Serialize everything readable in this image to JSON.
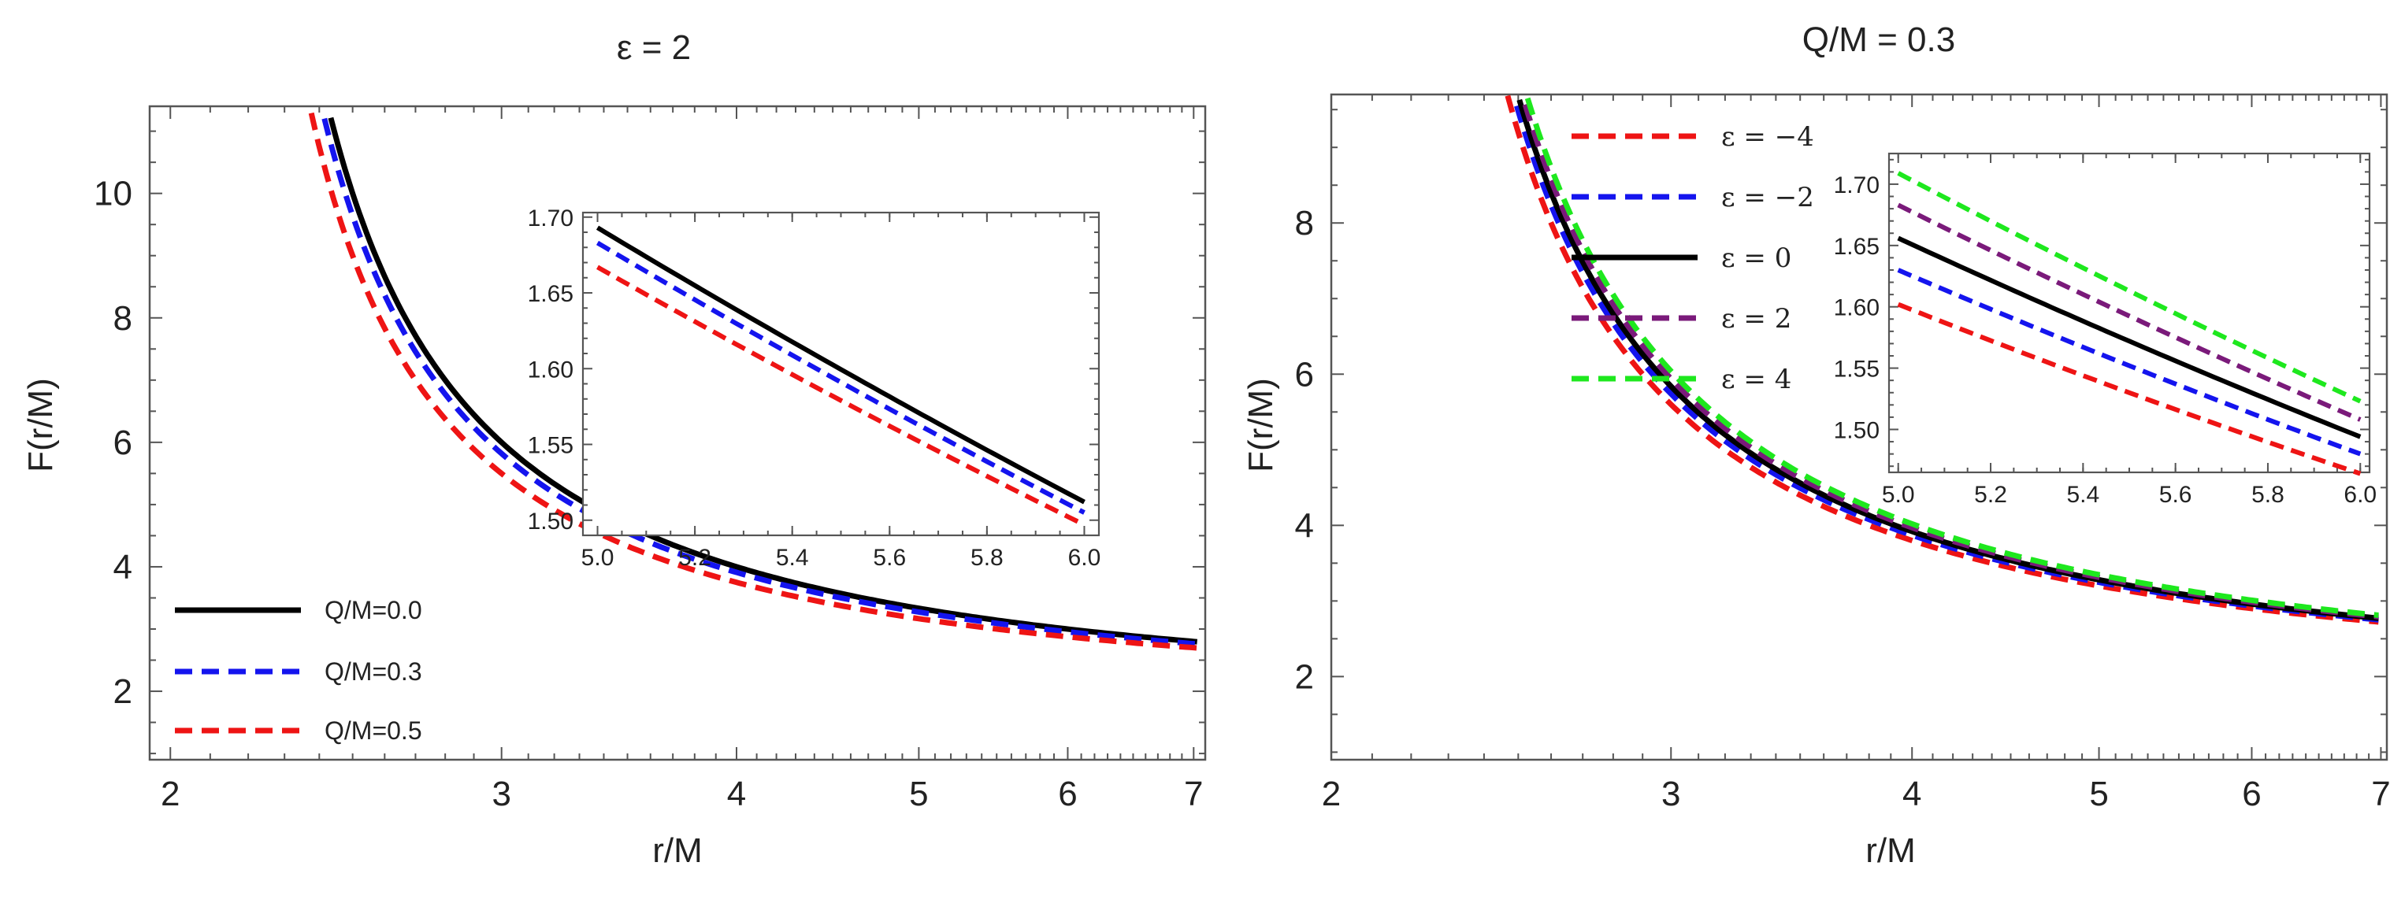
{
  "chart_data": [
    {
      "type": "line",
      "title": "ε = 2",
      "xlabel": "r/M",
      "ylabel": "F(r/M)",
      "xscale": "log",
      "xlim": [
        1.95,
        7.1
      ],
      "ylim": [
        0.9,
        11.4
      ],
      "xticks": [
        2,
        3,
        4,
        5,
        6,
        7
      ],
      "yticks": [
        2,
        4,
        6,
        8,
        10
      ],
      "legend_position": "bottom-left",
      "series": [
        {
          "name": "Q/M=0.0",
          "color": "#000000",
          "dash": "solid",
          "x_start": 2.26,
          "params": {
            "a": 2.0,
            "c": 0.0
          }
        },
        {
          "name": "Q/M=0.3",
          "color": "#1414ee",
          "dash": "dashed",
          "x_start": 2.22,
          "params": {
            "a": 1.91,
            "c": 0.09
          }
        },
        {
          "name": "Q/M=0.5",
          "color": "#ee1414",
          "dash": "dashed",
          "x_start": 2.15,
          "params": {
            "a": 1.75,
            "c": 0.25
          }
        }
      ],
      "inset": {
        "xlim": [
          4.97,
          6.03
        ],
        "ylim": [
          1.49,
          1.703
        ],
        "xticks": [
          "5.0",
          "5.2",
          "5.4",
          "5.6",
          "5.8",
          "6.0"
        ],
        "yticks": [
          "1.50",
          "1.55",
          "1.60",
          "1.65",
          "1.70"
        ],
        "series": [
          {
            "name": "Q/M=0.0",
            "y_start": 1.693,
            "y_end": 1.512
          },
          {
            "name": "Q/M=0.3",
            "y_start": 1.683,
            "y_end": 1.505
          },
          {
            "name": "Q/M=0.5",
            "y_start": 1.667,
            "y_end": 1.497
          }
        ]
      }
    },
    {
      "type": "line",
      "title": "Q/M = 0.3",
      "xlabel": "r/M",
      "ylabel": "F(r/M)",
      "xscale": "log",
      "xlim": [
        2.0,
        7.05
      ],
      "ylim": [
        0.9,
        9.7
      ],
      "xticks": [
        2,
        3,
        4,
        5,
        6,
        7
      ],
      "yticks": [
        2,
        4,
        6,
        8
      ],
      "legend_position": "top-left",
      "series": [
        {
          "name": "ε = −4",
          "color": "#ee1414",
          "dash": "dashed",
          "x_start": 2.1,
          "params": {
            "a": 1.8,
            "c": 0.2
          }
        },
        {
          "name": "ε = −2",
          "color": "#1414ee",
          "dash": "dashed",
          "x_start": 2.16,
          "params": {
            "a": 1.87,
            "c": 0.13
          }
        },
        {
          "name": "ε = 0",
          "color": "#000000",
          "dash": "solid",
          "x_start": 2.19,
          "params": {
            "a": 1.92,
            "c": 0.08
          }
        },
        {
          "name": "ε = 2",
          "color": "#7a1a7a",
          "dash": "dashed",
          "x_start": 2.24,
          "params": {
            "a": 1.97,
            "c": 0.03
          }
        },
        {
          "name": "ε = 4",
          "color": "#1ee81e",
          "dash": "dashed",
          "x_start": 2.28,
          "params": {
            "a": 2.02,
            "c": -0.02
          }
        }
      ],
      "inset": {
        "xlim": [
          4.98,
          6.02
        ],
        "ylim": [
          1.465,
          1.725
        ],
        "xticks": [
          "5.0",
          "5.2",
          "5.4",
          "5.6",
          "5.8",
          "6.0"
        ],
        "yticks": [
          "1.50",
          "1.55",
          "1.60",
          "1.65",
          "1.70"
        ],
        "series": [
          {
            "name": "ε = −4",
            "y_start": 1.602,
            "y_end": 1.464
          },
          {
            "name": "ε = −2",
            "y_start": 1.63,
            "y_end": 1.48
          },
          {
            "name": "ε = 0",
            "y_start": 1.656,
            "y_end": 1.494
          },
          {
            "name": "ε = 2",
            "y_start": 1.683,
            "y_end": 1.508
          },
          {
            "name": "ε = 4",
            "y_start": 1.709,
            "y_end": 1.523
          }
        ]
      }
    }
  ]
}
